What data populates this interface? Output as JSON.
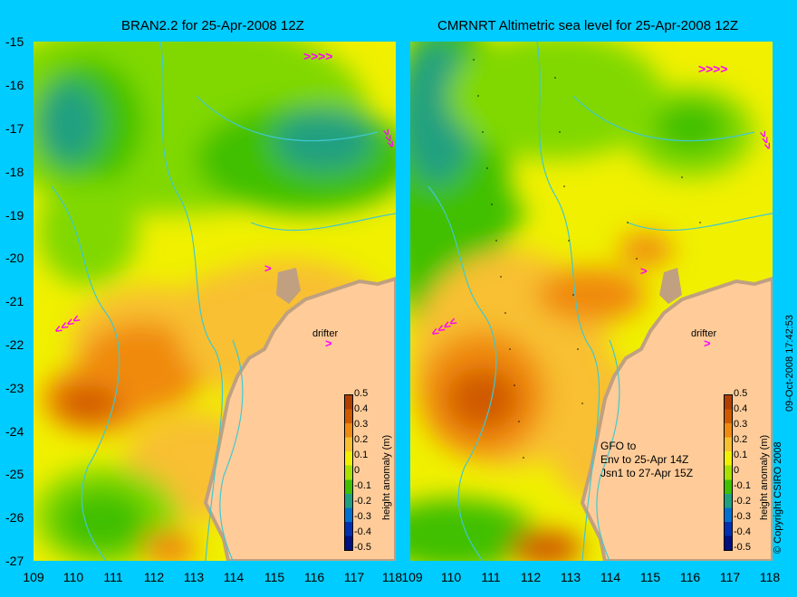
{
  "panels": [
    {
      "title": "BRAN2.2 for 25-Apr-2008 12Z",
      "drifter_label": "drifter"
    },
    {
      "title": "CMRNRT Altimetric sea level  for 25-Apr-2008 12Z",
      "drifter_label": "drifter",
      "note_lines": [
        "GFO to",
        "Env to 25-Apr 14Z",
        "Jsn1 to 27-Apr 15Z"
      ]
    }
  ],
  "y_axis_ticks": [
    "-15",
    "-16",
    "-17",
    "-18",
    "-19",
    "-20",
    "-21",
    "-22",
    "-23",
    "-24",
    "-25",
    "-26",
    "-27"
  ],
  "x_axis_ticks": [
    "109",
    "110",
    "111",
    "112",
    "113",
    "114",
    "115",
    "116",
    "117",
    "118"
  ],
  "colorbar": {
    "label": "height anomaly (m)",
    "ticks": [
      "0.5",
      "0.4",
      "0.3",
      "0.2",
      "0.1",
      "0",
      "-0.1",
      "-0.2",
      "-0.3",
      "-0.4",
      "-0.5"
    ],
    "colors": [
      "#b04000",
      "#d05a00",
      "#f08a10",
      "#f8c030",
      "#f0f000",
      "#a8e000",
      "#40c000",
      "#20a080",
      "#0070d0",
      "#0030b0",
      "#001080"
    ]
  },
  "side_text": {
    "copyright": "© Copyright CSIRO 2008",
    "timestamp": "09-Oct-2008 17:42:53"
  },
  "colors": {
    "background": "#00ccff",
    "land": "#ffcc99",
    "coast_shelf": "#c0a080",
    "bathymetry_contour": "#40c8d0",
    "drifter_marker": "#ff00ff"
  }
}
